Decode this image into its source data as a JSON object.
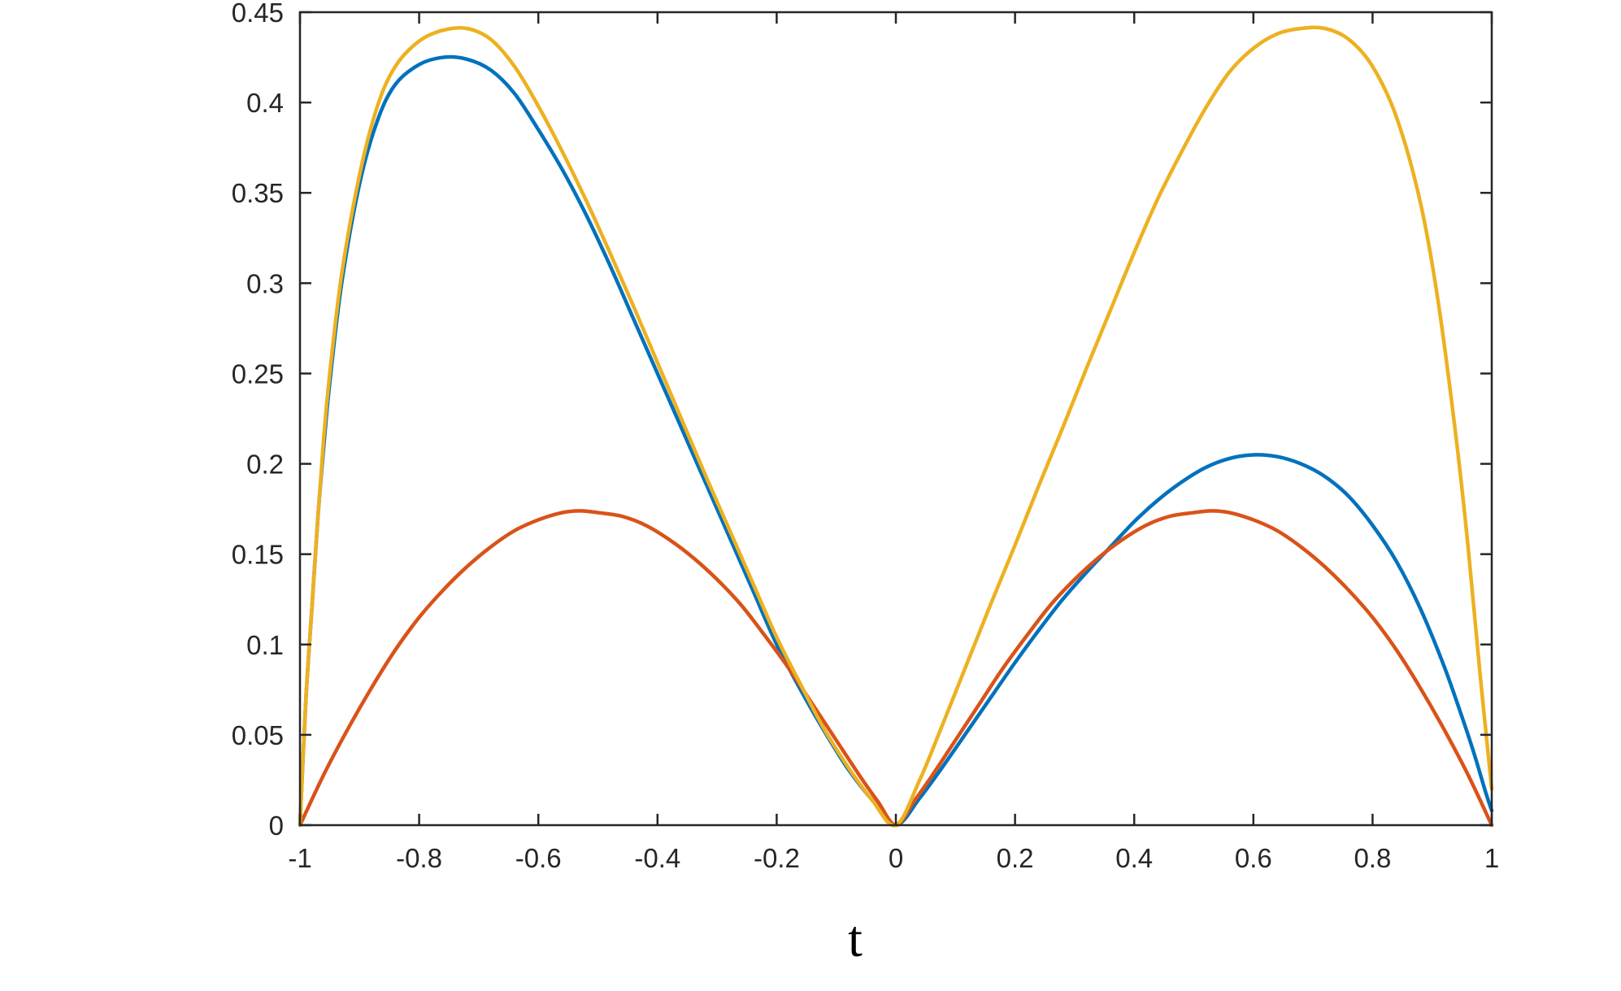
{
  "chart_data": {
    "type": "line",
    "title": "",
    "xlabel": "t",
    "ylabel": "",
    "xlim": [
      -1,
      1
    ],
    "ylim": [
      0,
      0.45
    ],
    "grid": false,
    "legend": "none",
    "x_ticks": [
      -1,
      -0.8,
      -0.6,
      -0.4,
      -0.2,
      0,
      0.2,
      0.4,
      0.6,
      0.8,
      1
    ],
    "x_tick_labels": [
      "-1",
      "-0.8",
      "-0.6",
      "-0.4",
      "-0.2",
      "0",
      "0.2",
      "0.4",
      "0.6",
      "0.8",
      "1"
    ],
    "y_ticks": [
      0,
      0.05,
      0.1,
      0.15,
      0.2,
      0.25,
      0.3,
      0.35,
      0.4,
      0.45
    ],
    "y_tick_labels": [
      "0",
      "0.05",
      "0.1",
      "0.15",
      "0.2",
      "0.25",
      "0.3",
      "0.35",
      "0.4",
      "0.45"
    ],
    "series": [
      {
        "color": "#0072BD",
        "points": [
          [
            -1,
            0
          ],
          [
            -0.99,
            0.07
          ],
          [
            -0.98,
            0.12
          ],
          [
            -0.97,
            0.17
          ],
          [
            -0.96,
            0.21
          ],
          [
            -0.95,
            0.245
          ],
          [
            -0.93,
            0.3
          ],
          [
            -0.9,
            0.355
          ],
          [
            -0.87,
            0.39
          ],
          [
            -0.84,
            0.41
          ],
          [
            -0.8,
            0.421
          ],
          [
            -0.76,
            0.425
          ],
          [
            -0.72,
            0.424
          ],
          [
            -0.68,
            0.418
          ],
          [
            -0.64,
            0.405
          ],
          [
            -0.6,
            0.385
          ],
          [
            -0.56,
            0.363
          ],
          [
            -0.52,
            0.338
          ],
          [
            -0.48,
            0.31
          ],
          [
            -0.44,
            0.28
          ],
          [
            -0.4,
            0.25
          ],
          [
            -0.36,
            0.22
          ],
          [
            -0.32,
            0.19
          ],
          [
            -0.28,
            0.16
          ],
          [
            -0.24,
            0.13
          ],
          [
            -0.2,
            0.1
          ],
          [
            -0.16,
            0.075
          ],
          [
            -0.12,
            0.052
          ],
          [
            -0.08,
            0.031
          ],
          [
            -0.04,
            0.014
          ],
          [
            0,
            0
          ],
          [
            0.04,
            0.015
          ],
          [
            0.08,
            0.033
          ],
          [
            0.12,
            0.052
          ],
          [
            0.16,
            0.071
          ],
          [
            0.2,
            0.09
          ],
          [
            0.24,
            0.108
          ],
          [
            0.28,
            0.125
          ],
          [
            0.32,
            0.14
          ],
          [
            0.36,
            0.154
          ],
          [
            0.4,
            0.168
          ],
          [
            0.44,
            0.18
          ],
          [
            0.48,
            0.19
          ],
          [
            0.52,
            0.198
          ],
          [
            0.56,
            0.203
          ],
          [
            0.6,
            0.205
          ],
          [
            0.64,
            0.204
          ],
          [
            0.68,
            0.2
          ],
          [
            0.72,
            0.193
          ],
          [
            0.76,
            0.182
          ],
          [
            0.8,
            0.166
          ],
          [
            0.84,
            0.146
          ],
          [
            0.88,
            0.12
          ],
          [
            0.92,
            0.088
          ],
          [
            0.95,
            0.06
          ],
          [
            0.97,
            0.04
          ],
          [
            0.99,
            0.018
          ],
          [
            1,
            0.008
          ]
        ]
      },
      {
        "color": "#D95319",
        "points": [
          [
            -1,
            0
          ],
          [
            -0.96,
            0.028
          ],
          [
            -0.92,
            0.053
          ],
          [
            -0.88,
            0.076
          ],
          [
            -0.84,
            0.097
          ],
          [
            -0.8,
            0.115
          ],
          [
            -0.76,
            0.13
          ],
          [
            -0.72,
            0.143
          ],
          [
            -0.68,
            0.154
          ],
          [
            -0.64,
            0.163
          ],
          [
            -0.6,
            0.169
          ],
          [
            -0.56,
            0.173
          ],
          [
            -0.53,
            0.174
          ],
          [
            -0.5,
            0.173
          ],
          [
            -0.46,
            0.171
          ],
          [
            -0.42,
            0.166
          ],
          [
            -0.38,
            0.158
          ],
          [
            -0.34,
            0.148
          ],
          [
            -0.3,
            0.136
          ],
          [
            -0.26,
            0.122
          ],
          [
            -0.22,
            0.105
          ],
          [
            -0.18,
            0.087
          ],
          [
            -0.14,
            0.067
          ],
          [
            -0.1,
            0.047
          ],
          [
            -0.06,
            0.027
          ],
          [
            -0.03,
            0.013
          ],
          [
            0,
            0
          ],
          [
            0.03,
            0.013
          ],
          [
            0.06,
            0.027
          ],
          [
            0.1,
            0.047
          ],
          [
            0.14,
            0.067
          ],
          [
            0.18,
            0.087
          ],
          [
            0.22,
            0.105
          ],
          [
            0.26,
            0.122
          ],
          [
            0.3,
            0.136
          ],
          [
            0.34,
            0.148
          ],
          [
            0.38,
            0.158
          ],
          [
            0.42,
            0.166
          ],
          [
            0.46,
            0.171
          ],
          [
            0.5,
            0.173
          ],
          [
            0.53,
            0.174
          ],
          [
            0.56,
            0.173
          ],
          [
            0.6,
            0.169
          ],
          [
            0.64,
            0.163
          ],
          [
            0.68,
            0.154
          ],
          [
            0.72,
            0.143
          ],
          [
            0.76,
            0.13
          ],
          [
            0.8,
            0.115
          ],
          [
            0.84,
            0.097
          ],
          [
            0.88,
            0.076
          ],
          [
            0.92,
            0.053
          ],
          [
            0.96,
            0.028
          ],
          [
            1,
            0
          ]
        ]
      },
      {
        "color": "#EDB120",
        "points": [
          [
            -1,
            0
          ],
          [
            -0.99,
            0.07
          ],
          [
            -0.98,
            0.12
          ],
          [
            -0.97,
            0.17
          ],
          [
            -0.96,
            0.215
          ],
          [
            -0.95,
            0.25
          ],
          [
            -0.93,
            0.305
          ],
          [
            -0.9,
            0.36
          ],
          [
            -0.87,
            0.398
          ],
          [
            -0.84,
            0.42
          ],
          [
            -0.8,
            0.434
          ],
          [
            -0.76,
            0.44
          ],
          [
            -0.72,
            0.441
          ],
          [
            -0.68,
            0.435
          ],
          [
            -0.64,
            0.42
          ],
          [
            -0.6,
            0.398
          ],
          [
            -0.56,
            0.373
          ],
          [
            -0.52,
            0.346
          ],
          [
            -0.48,
            0.317
          ],
          [
            -0.44,
            0.287
          ],
          [
            -0.4,
            0.256
          ],
          [
            -0.36,
            0.225
          ],
          [
            -0.32,
            0.194
          ],
          [
            -0.28,
            0.164
          ],
          [
            -0.24,
            0.134
          ],
          [
            -0.2,
            0.104
          ],
          [
            -0.16,
            0.078
          ],
          [
            -0.12,
            0.053
          ],
          [
            -0.08,
            0.032
          ],
          [
            -0.04,
            0.014
          ],
          [
            0,
            0
          ],
          [
            0.04,
            0.025
          ],
          [
            0.08,
            0.057
          ],
          [
            0.12,
            0.09
          ],
          [
            0.16,
            0.123
          ],
          [
            0.2,
            0.155
          ],
          [
            0.24,
            0.188
          ],
          [
            0.28,
            0.22
          ],
          [
            0.32,
            0.253
          ],
          [
            0.36,
            0.285
          ],
          [
            0.4,
            0.317
          ],
          [
            0.44,
            0.347
          ],
          [
            0.48,
            0.373
          ],
          [
            0.52,
            0.397
          ],
          [
            0.56,
            0.417
          ],
          [
            0.6,
            0.43
          ],
          [
            0.64,
            0.438
          ],
          [
            0.68,
            0.441
          ],
          [
            0.72,
            0.441
          ],
          [
            0.76,
            0.435
          ],
          [
            0.8,
            0.42
          ],
          [
            0.84,
            0.392
          ],
          [
            0.88,
            0.345
          ],
          [
            0.91,
            0.29
          ],
          [
            0.94,
            0.215
          ],
          [
            0.96,
            0.155
          ],
          [
            0.98,
            0.085
          ],
          [
            1,
            0.02
          ]
        ]
      }
    ]
  }
}
